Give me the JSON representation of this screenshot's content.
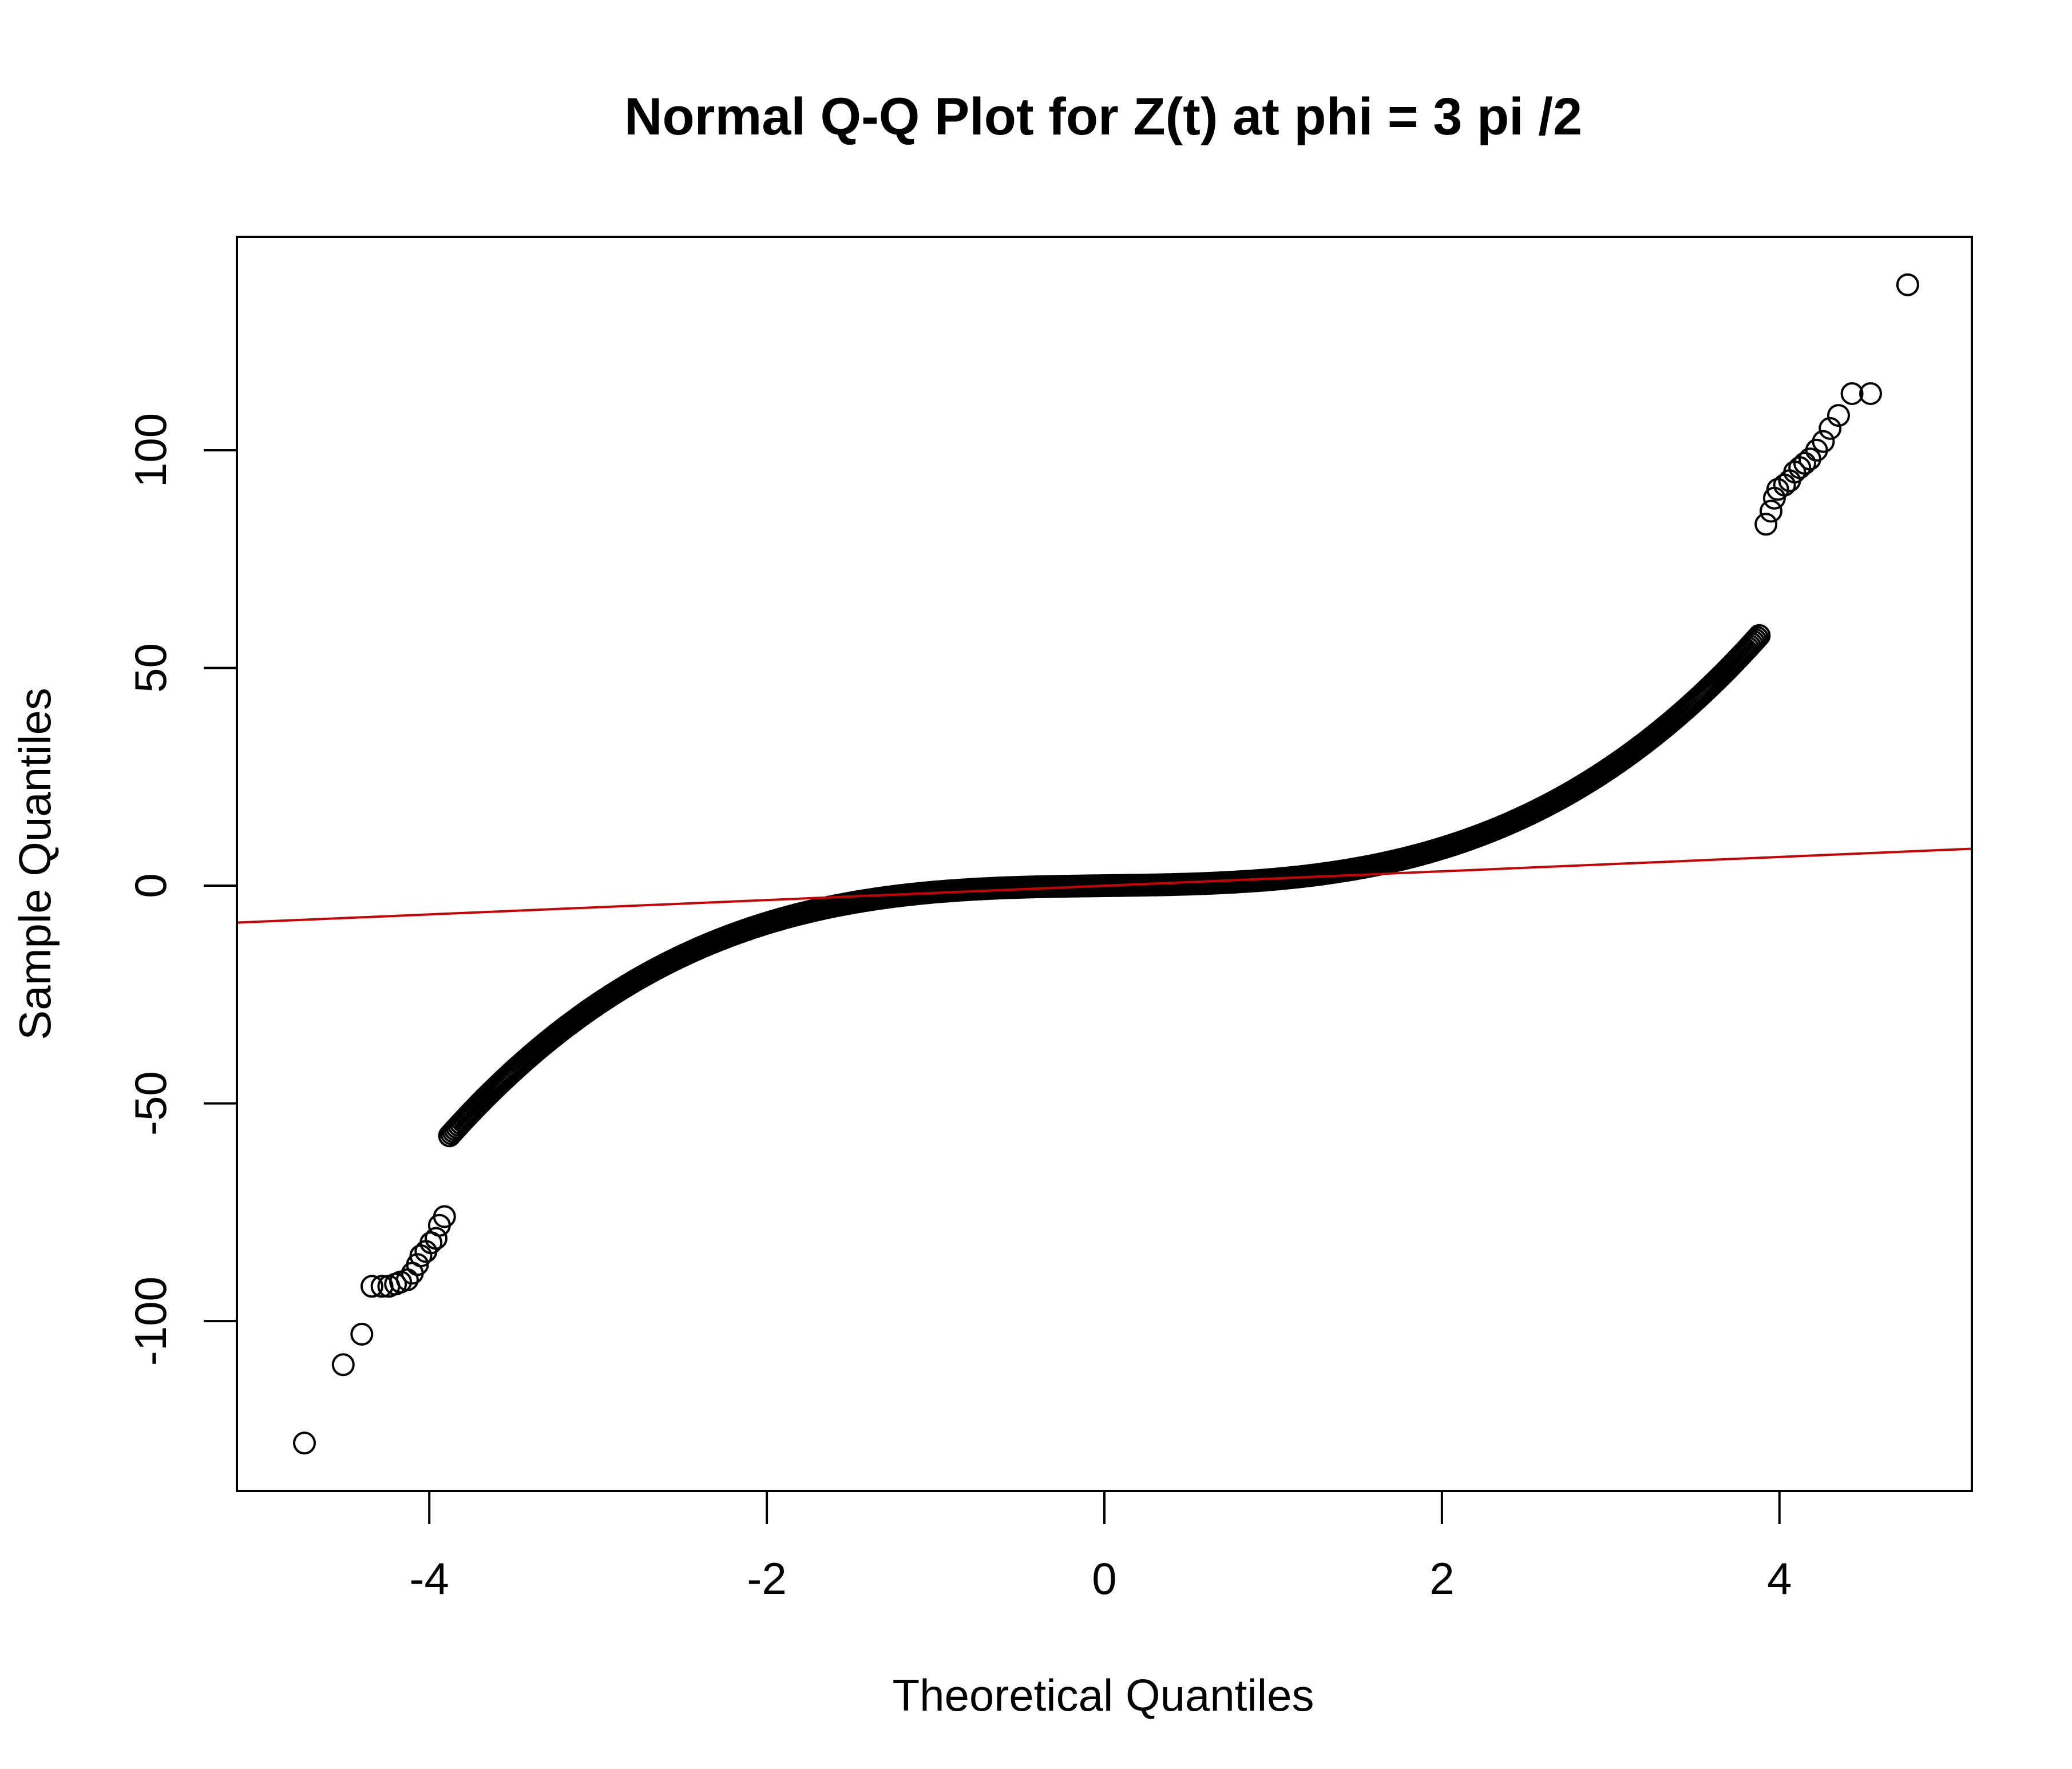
{
  "chart_data": {
    "type": "scatter",
    "title": "Normal Q-Q Plot for Z(t) at  phi  = 3 pi /2",
    "xlabel": "Theoretical Quantiles",
    "ylabel": "Sample Quantiles",
    "xlim": [
      -5.14,
      5.14
    ],
    "ylim": [
      -139,
      149
    ],
    "xticks": [
      -4,
      -2,
      0,
      2,
      4
    ],
    "yticks": [
      -100,
      -50,
      0,
      50,
      100
    ],
    "grid": false,
    "legend": "none",
    "colors": {
      "points": "#000000",
      "reference_line": "#cc0000"
    },
    "reference_line": {
      "slope": 1.65,
      "intercept": 0
    },
    "curve_model": {
      "description": "sample quantile approx 0.5*x + 0.95*x^3",
      "a": 0.5,
      "b": 0.95,
      "x_range": [
        -3.88,
        3.88
      ]
    },
    "outliers": [
      {
        "x": -4.74,
        "y": -128
      },
      {
        "x": -4.51,
        "y": -110
      },
      {
        "x": -4.4,
        "y": -103
      },
      {
        "x": -4.34,
        "y": -92
      },
      {
        "x": -4.28,
        "y": -92
      },
      {
        "x": -4.24,
        "y": -92
      },
      {
        "x": -4.2,
        "y": -91.5
      },
      {
        "x": -4.17,
        "y": -91
      },
      {
        "x": -4.13,
        "y": -90.5
      },
      {
        "x": -4.1,
        "y": -89
      },
      {
        "x": -4.07,
        "y": -87
      },
      {
        "x": -4.05,
        "y": -85
      },
      {
        "x": -4.02,
        "y": -84
      },
      {
        "x": -3.99,
        "y": -82
      },
      {
        "x": -3.96,
        "y": -81
      },
      {
        "x": -3.94,
        "y": -78
      },
      {
        "x": -3.91,
        "y": -76
      },
      {
        "x": 3.92,
        "y": 83
      },
      {
        "x": 3.95,
        "y": 86
      },
      {
        "x": 3.97,
        "y": 89
      },
      {
        "x": 3.99,
        "y": 91
      },
      {
        "x": 4.03,
        "y": 92
      },
      {
        "x": 4.06,
        "y": 93
      },
      {
        "x": 4.09,
        "y": 95
      },
      {
        "x": 4.12,
        "y": 96
      },
      {
        "x": 4.15,
        "y": 97
      },
      {
        "x": 4.18,
        "y": 98
      },
      {
        "x": 4.22,
        "y": 100
      },
      {
        "x": 4.26,
        "y": 102
      },
      {
        "x": 4.3,
        "y": 105
      },
      {
        "x": 4.35,
        "y": 108
      },
      {
        "x": 4.43,
        "y": 113
      },
      {
        "x": 4.54,
        "y": 113
      },
      {
        "x": 4.76,
        "y": 138
      }
    ]
  }
}
